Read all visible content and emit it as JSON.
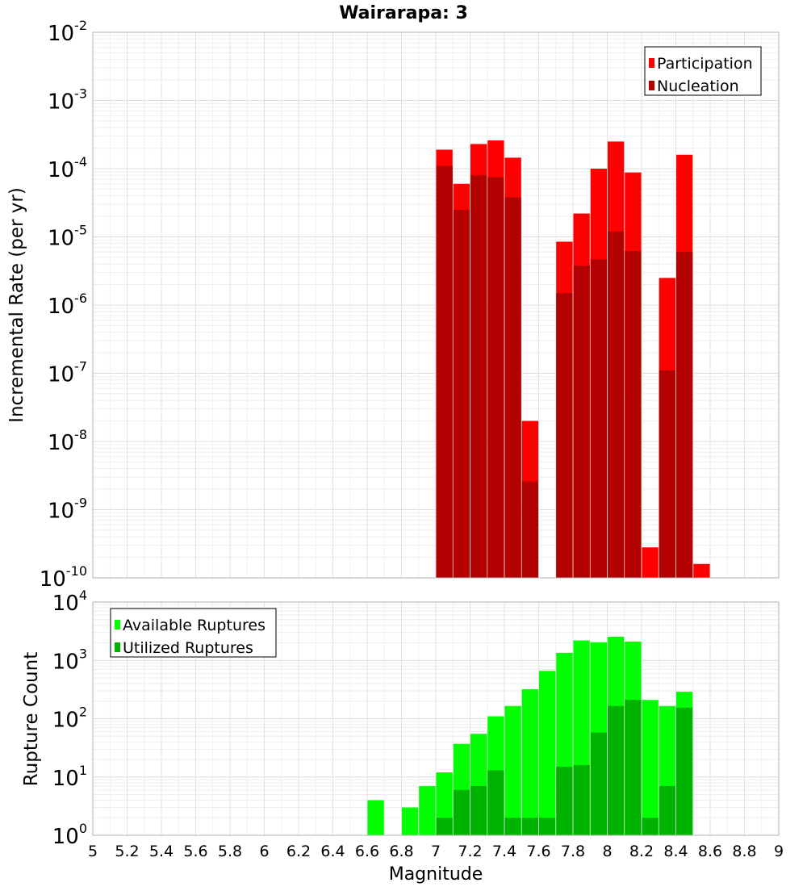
{
  "chart_data": [
    {
      "type": "bar",
      "title": "Wairarapa: 3",
      "xlabel": "",
      "ylabel": "Incremental Rate (per yr)",
      "yscale": "log",
      "ylim": [
        1e-10,
        0.01
      ],
      "xlim": [
        5,
        9
      ],
      "x": [
        7.05,
        7.15,
        7.25,
        7.35,
        7.45,
        7.55,
        7.75,
        7.85,
        7.95,
        8.05,
        8.15,
        8.25,
        8.35,
        8.45,
        8.55
      ],
      "series": [
        {
          "name": "Participation",
          "color": "#ff0000",
          "values": [
            0.00019,
            6e-05,
            0.00023,
            0.00026,
            0.000145,
            2e-08,
            8.5e-06,
            2.2e-05,
            0.0001,
            0.00025,
            8.8e-05,
            2.8e-10,
            2.5e-06,
            0.00016,
            1.6e-10
          ]
        },
        {
          "name": "Nucleation",
          "color": "#b30000",
          "values": [
            0.00011,
            2.5e-05,
            8e-05,
            7.5e-05,
            3.8e-05,
            2.6e-09,
            1.5e-06,
            3.8e-06,
            4.7e-06,
            1.2e-05,
            6.2e-06,
            null,
            1.1e-07,
            6e-06,
            null
          ]
        }
      ],
      "legend_position": "top-right",
      "grid": true
    },
    {
      "type": "bar",
      "title": "",
      "xlabel": "Magnitude",
      "ylabel": "Rupture Count",
      "yscale": "log",
      "ylim": [
        1,
        10000.0
      ],
      "xlim": [
        5,
        9
      ],
      "x": [
        6.65,
        6.85,
        6.95,
        7.05,
        7.15,
        7.25,
        7.35,
        7.45,
        7.55,
        7.65,
        7.75,
        7.85,
        7.95,
        8.05,
        8.15,
        8.25,
        8.35,
        8.45,
        8.55
      ],
      "series": [
        {
          "name": "Available Ruptures",
          "color": "#00ff00",
          "values": [
            4,
            3,
            7,
            12,
            37,
            55,
            110,
            165,
            320,
            660,
            1350,
            2200,
            2050,
            2550,
            2100,
            210,
            165,
            290,
            1
          ]
        },
        {
          "name": "Utilized Ruptures",
          "color": "#00b300",
          "values": [
            null,
            null,
            null,
            2,
            6,
            7,
            13,
            2,
            2,
            2,
            15,
            16,
            58,
            165,
            210,
            2,
            7,
            155,
            1
          ]
        }
      ],
      "legend_position": "top-left",
      "grid": true
    }
  ],
  "axis": {
    "x_ticks": [
      "5",
      "5.2",
      "5.4",
      "5.6",
      "5.8",
      "6",
      "6.2",
      "6.4",
      "6.6",
      "6.8",
      "7",
      "7.2",
      "7.4",
      "7.6",
      "7.8",
      "8",
      "8.2",
      "8.4",
      "8.6",
      "8.8",
      "9"
    ],
    "top_y_exponents": [
      "-2",
      "-3",
      "-4",
      "-5",
      "-6",
      "-7",
      "-8",
      "-9",
      "-10"
    ],
    "bottom_y_exponents": [
      "4",
      "3",
      "2",
      "1",
      "0"
    ],
    "y_base": "10"
  }
}
